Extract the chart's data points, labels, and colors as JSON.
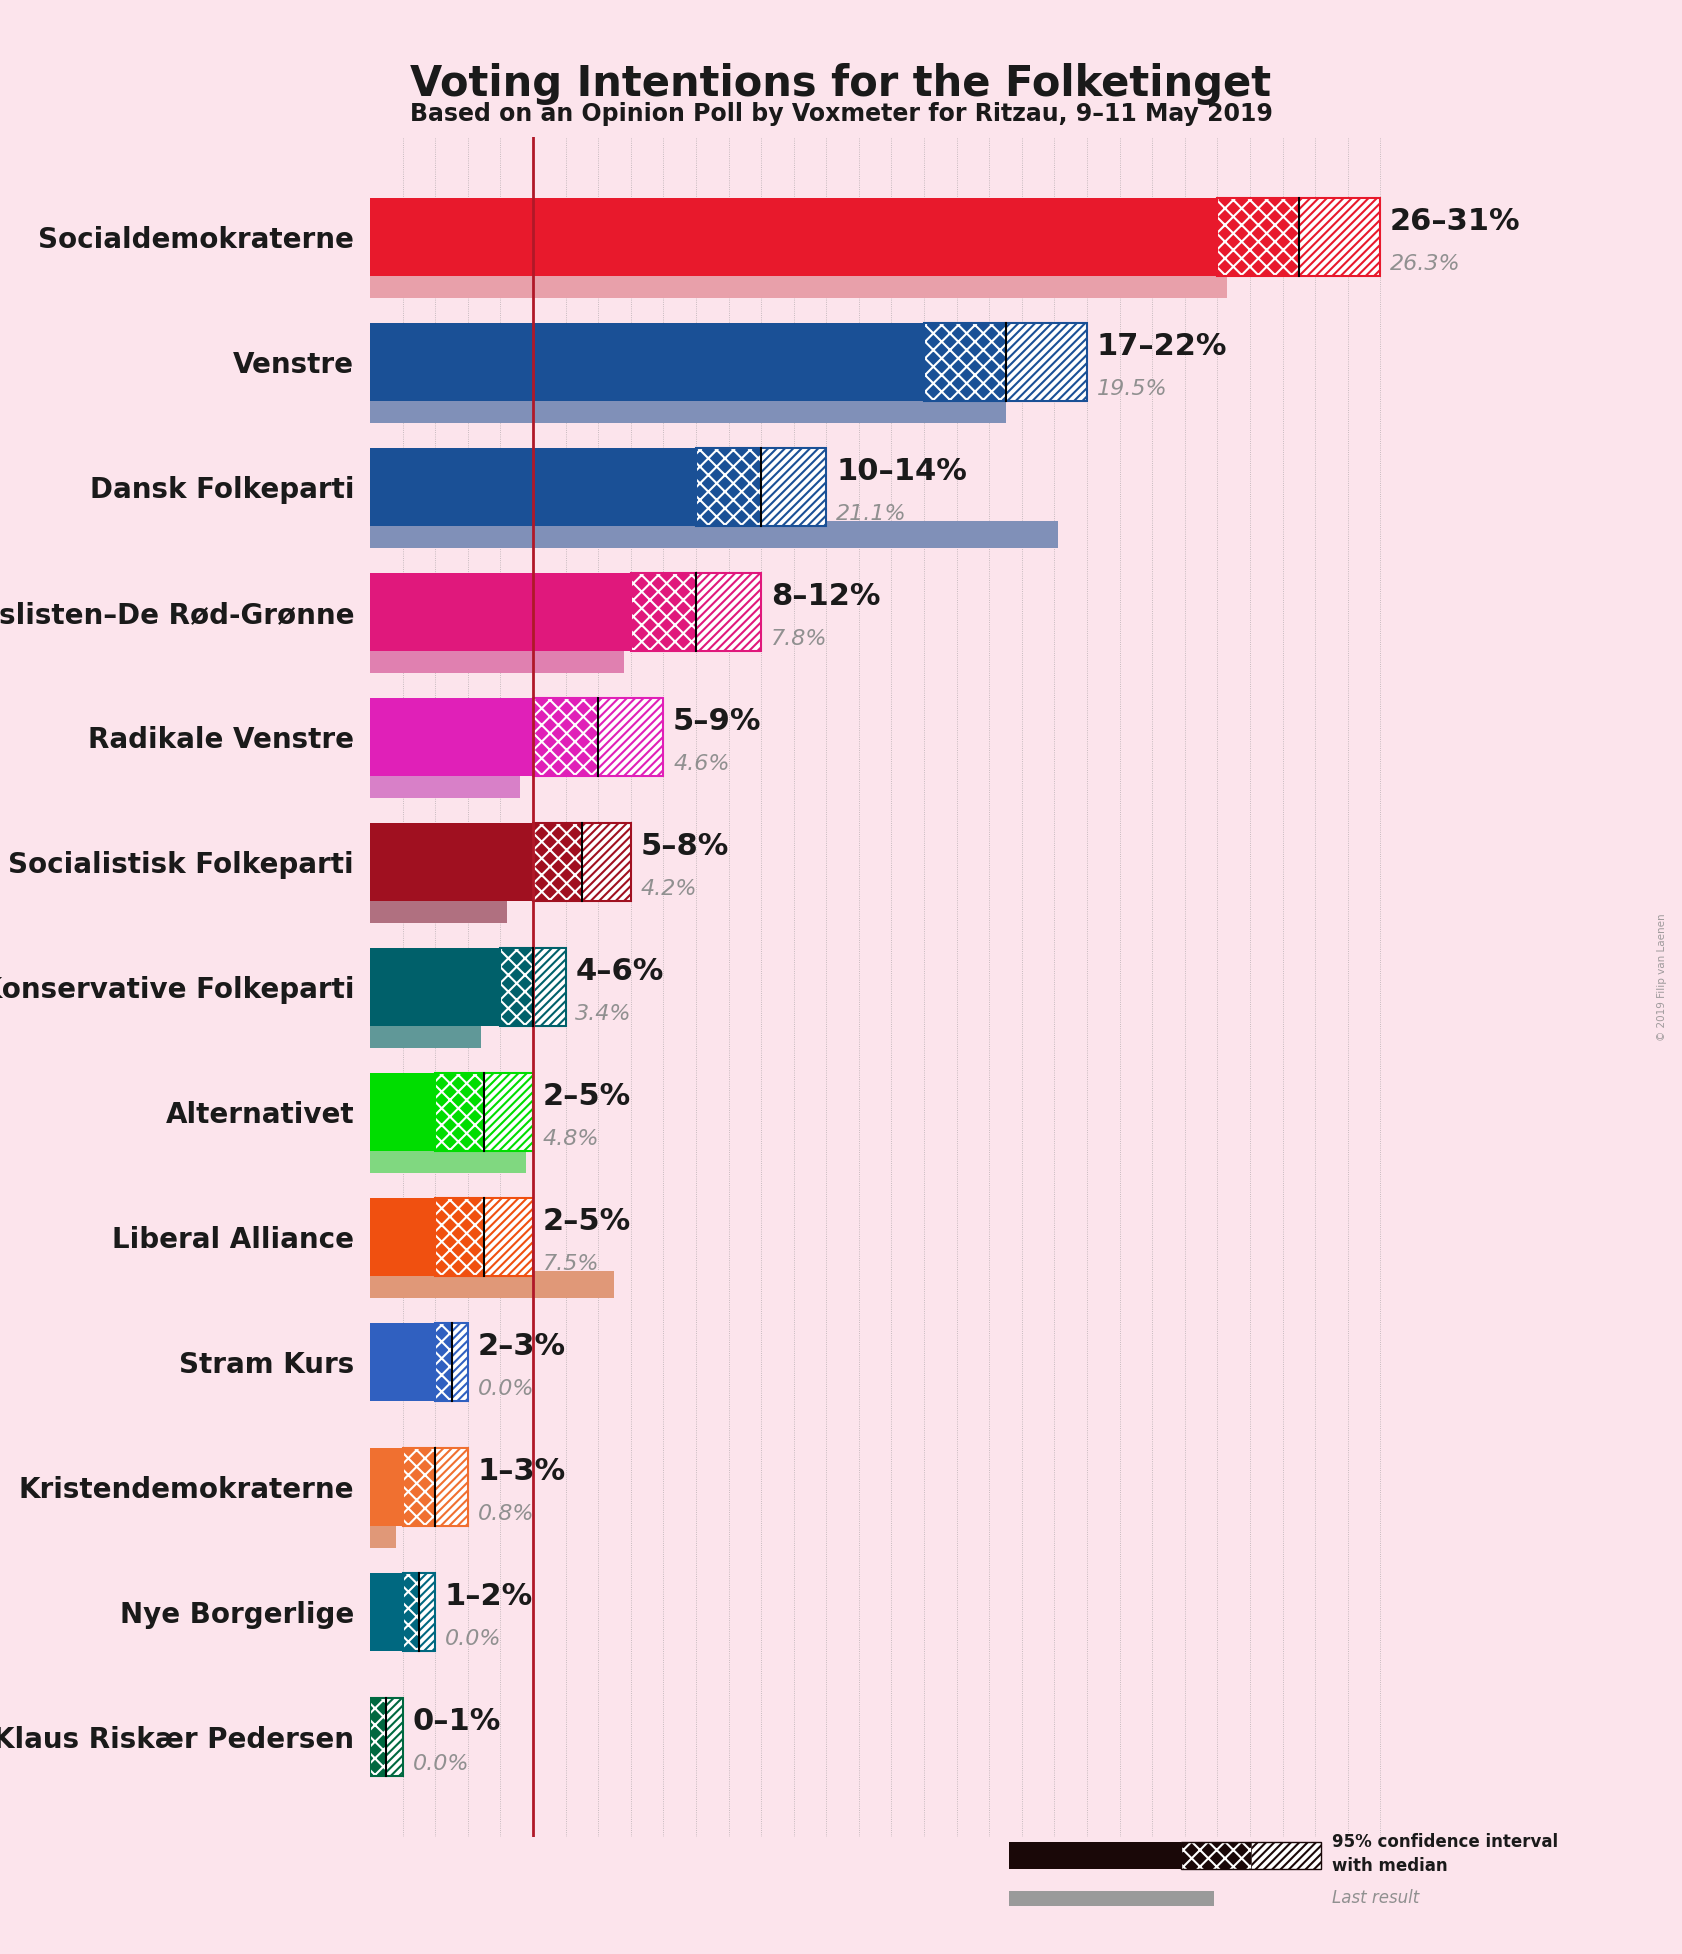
{
  "title": "Voting Intentions for the Folketinget",
  "subtitle": "Based on an Opinion Poll by Voxmeter for Ritzau, 9–11 May 2019",
  "background_color": "#fce4ec",
  "parties": [
    {
      "name": "Socialdemokraterne",
      "ci_low": 26,
      "ci_high": 31,
      "median": 28.5,
      "last": 26.3
    },
    {
      "name": "Venstre",
      "ci_low": 17,
      "ci_high": 22,
      "median": 19.5,
      "last": 19.5
    },
    {
      "name": "Dansk Folkeparti",
      "ci_low": 10,
      "ci_high": 14,
      "median": 12.0,
      "last": 21.1
    },
    {
      "name": "Enhedslisten–De Rød-Grønne",
      "ci_low": 8,
      "ci_high": 12,
      "median": 10.0,
      "last": 7.8
    },
    {
      "name": "Radikale Venstre",
      "ci_low": 5,
      "ci_high": 9,
      "median": 7.0,
      "last": 4.6
    },
    {
      "name": "Socialistisk Folkeparti",
      "ci_low": 5,
      "ci_high": 8,
      "median": 6.5,
      "last": 4.2
    },
    {
      "name": "Det Konservative Folkeparti",
      "ci_low": 4,
      "ci_high": 6,
      "median": 5.0,
      "last": 3.4
    },
    {
      "name": "Alternativet",
      "ci_low": 2,
      "ci_high": 5,
      "median": 3.5,
      "last": 4.8
    },
    {
      "name": "Liberal Alliance",
      "ci_low": 2,
      "ci_high": 5,
      "median": 3.5,
      "last": 7.5
    },
    {
      "name": "Stram Kurs",
      "ci_low": 2,
      "ci_high": 3,
      "median": 2.5,
      "last": 0.0
    },
    {
      "name": "Kristendemokraterne",
      "ci_low": 1,
      "ci_high": 3,
      "median": 2.0,
      "last": 0.8
    },
    {
      "name": "Nye Borgerlige",
      "ci_low": 1,
      "ci_high": 2,
      "median": 1.5,
      "last": 0.0
    },
    {
      "name": "Klaus Riskær Pedersen",
      "ci_low": 0,
      "ci_high": 1,
      "median": 0.5,
      "last": 0.0
    }
  ],
  "party_colors": {
    "Socialdemokraterne": "#e8192c",
    "Venstre": "#1a5096",
    "Dansk Folkeparti": "#1a5096",
    "Enhedslisten–De Rød-Grønne": "#e0187c",
    "Radikale Venstre": "#e020b8",
    "Socialistisk Folkeparti": "#a01020",
    "Det Konservative Folkeparti": "#00606a",
    "Alternativet": "#00dd00",
    "Liberal Alliance": "#f05010",
    "Stram Kurs": "#3060c0",
    "Kristendemokraterne": "#f07030",
    "Nye Borgerlige": "#006880",
    "Klaus Riskær Pedersen": "#006840"
  },
  "last_colors": {
    "Socialdemokraterne": "#e8a0aa",
    "Venstre": "#8090b8",
    "Dansk Folkeparti": "#8090b8",
    "Enhedslisten–De Rød-Grønne": "#e080b0",
    "Radikale Venstre": "#d880c8",
    "Socialistisk Folkeparti": "#b07080",
    "Det Konservative Folkeparti": "#609898",
    "Alternativet": "#80d880",
    "Liberal Alliance": "#e09878",
    "Stram Kurs": "#8898cc",
    "Kristendemokraterne": "#e09878",
    "Nye Borgerlige": "#6098a8",
    "Klaus Riskær Pedersen": "#609898"
  },
  "ci_labels": [
    "26–31%",
    "17–22%",
    "10–14%",
    "8–12%",
    "5–9%",
    "5–8%",
    "4–6%",
    "2–5%",
    "2–5%",
    "2–3%",
    "1–3%",
    "1–2%",
    "0–1%"
  ],
  "last_labels": [
    "26.3%",
    "19.5%",
    "21.1%",
    "7.8%",
    "4.6%",
    "4.2%",
    "3.4%",
    "4.8%",
    "7.5%",
    "0.0%",
    "0.8%",
    "0.0%",
    "0.0%"
  ],
  "xlim": [
    0,
    32
  ],
  "vertical_line_x": 5,
  "vertical_line_color": "#b01828",
  "grid_color": "#888888",
  "title_fontsize": 30,
  "subtitle_fontsize": 17,
  "label_fontsize": 20,
  "ci_fontsize": 22,
  "last_fontsize": 16,
  "watermark": "© 2019 Filip van Laenen"
}
